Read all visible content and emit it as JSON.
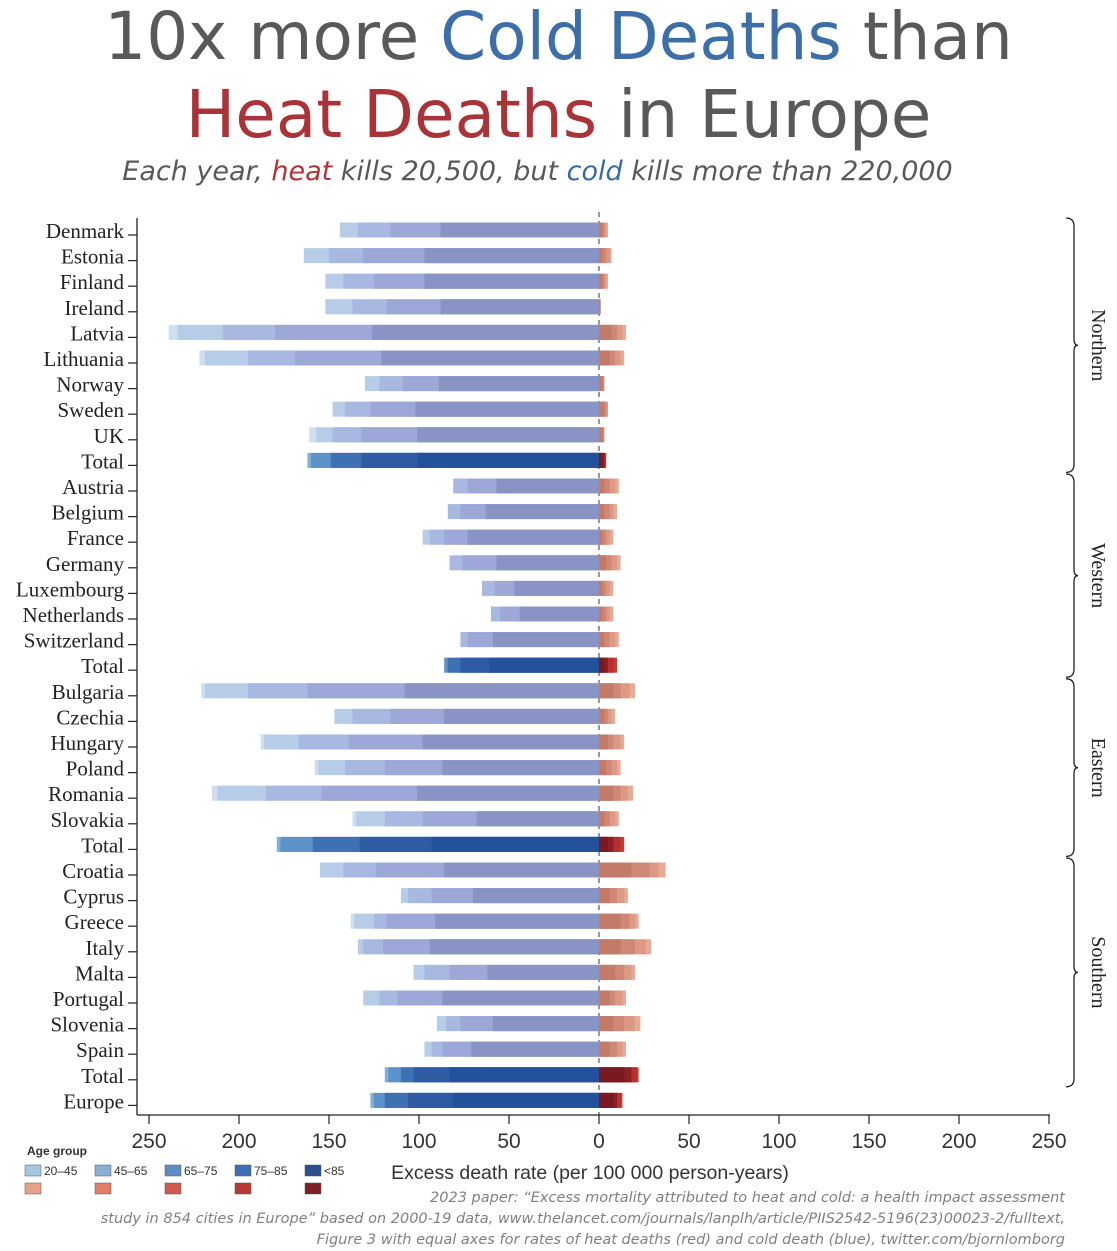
{
  "title": {
    "line1_pre": "10x more ",
    "line1_cold": "Cold Deaths",
    "line1_post": " than",
    "line2_heat": "Heat Deaths",
    "line2_post": " in Europe"
  },
  "subtitle": {
    "p1": "Each year, ",
    "heat": "heat",
    "p2": " kills 20,500, but ",
    "cold": "cold",
    "p3": " kills more than 220,000"
  },
  "source": {
    "line1": "2023 paper: “Excess mortality attributed to heat and cold: a health impact assessment",
    "line2": "study in 854 cities in Europe” based on 2000-19 data, www.thelancet.com/journals/lanplh/article/PIIS2542-5196(23)00023-2/fulltext,",
    "line3": "Figure 3 with equal axes for rates of heat deaths (red) and cold death (blue), twitter.com/bjornlomborg"
  },
  "chart_data": {
    "type": "bar",
    "orientation": "horizontal",
    "stacked": true,
    "xlabel": "Excess death rate (per 100 000 person-years)",
    "xlim": [
      -250,
      250
    ],
    "xticks": [
      -250,
      -200,
      -150,
      -100,
      -50,
      0,
      50,
      100,
      150,
      200,
      250
    ],
    "xtick_labels": [
      "250",
      "200",
      "150",
      "100",
      "50",
      "0",
      "50",
      "100",
      "150",
      "200",
      "250"
    ],
    "legend": {
      "title": "Age group",
      "position": "bottom-left",
      "labels": [
        "20–45",
        "45–65",
        "65–75",
        "75–85",
        "<85"
      ],
      "cold_colors": [
        "#a9c6e0",
        "#88afd4",
        "#5f8ec4",
        "#3f6fb0",
        "#2a4f8f"
      ],
      "heat_colors": [
        "#e8a088",
        "#e07e67",
        "#d25a4a",
        "#b83836",
        "#7c2024"
      ]
    },
    "colors": {
      "cold_country": [
        "#cfdff0",
        "#b7cde7",
        "#a8b8e0",
        "#9da8d8",
        "#8a94c4"
      ],
      "cold_total": [
        "#7fb0d8",
        "#5b92c7",
        "#3d71b4",
        "#2f5aa4",
        "#24519c"
      ],
      "heat_country": [
        "#f0c4b4",
        "#e8aa96",
        "#dc9a86",
        "#d08876",
        "#c47a68"
      ],
      "heat_total": [
        "#d64a40",
        "#c53c35",
        "#b5302e",
        "#8c1f24",
        "#7a1a20"
      ]
    },
    "regions": [
      {
        "name": "Northern",
        "rows": [
          0,
          9
        ]
      },
      {
        "name": "Western",
        "rows": [
          10,
          17
        ]
      },
      {
        "name": "Eastern",
        "rows": [
          18,
          24
        ]
      },
      {
        "name": "Southern",
        "rows": [
          25,
          33
        ]
      }
    ],
    "rows": [
      {
        "label": "Denmark",
        "cold": [
          144,
          134,
          116,
          88
        ],
        "heat": [
          5,
          4,
          3,
          2
        ]
      },
      {
        "label": "Estonia",
        "cold": [
          164,
          150,
          131,
          97
        ],
        "heat": [
          7,
          6,
          4,
          2
        ]
      },
      {
        "label": "Finland",
        "cold": [
          152,
          142,
          125,
          97
        ],
        "heat": [
          5,
          4,
          3,
          2
        ]
      },
      {
        "label": "Ireland",
        "cold": [
          152,
          137,
          118,
          88
        ],
        "heat": [
          1,
          0.5
        ]
      },
      {
        "label": "Latvia",
        "cold": [
          239,
          234,
          209,
          180,
          126
        ],
        "heat": [
          15,
          13,
          10,
          7
        ]
      },
      {
        "label": "Lithuania",
        "cold": [
          222,
          219,
          195,
          169,
          121
        ],
        "heat": [
          14,
          12,
          9,
          6
        ]
      },
      {
        "label": "Norway",
        "cold": [
          130,
          122,
          109,
          89
        ],
        "heat": [
          3,
          2
        ]
      },
      {
        "label": "Sweden",
        "cold": [
          148,
          141,
          127,
          102
        ],
        "heat": [
          5,
          4,
          3
        ]
      },
      {
        "label": "UK",
        "cold": [
          161,
          157,
          148,
          132,
          101
        ],
        "heat": [
          3,
          2
        ]
      },
      {
        "label": "Total",
        "total": true,
        "cold": [
          162,
          160,
          149,
          132,
          101
        ],
        "heat": [
          4,
          3,
          2
        ]
      },
      {
        "label": "Austria",
        "cold": [
          81,
          73,
          57
        ],
        "heat": [
          11,
          9,
          6,
          3
        ]
      },
      {
        "label": "Belgium",
        "cold": [
          84,
          77,
          63
        ],
        "heat": [
          10,
          8,
          6,
          3
        ]
      },
      {
        "label": "France",
        "cold": [
          98,
          94,
          86,
          73
        ],
        "heat": [
          8,
          6,
          4,
          2
        ]
      },
      {
        "label": "Germany",
        "cold": [
          83,
          76,
          57
        ],
        "heat": [
          12,
          10,
          7,
          4
        ]
      },
      {
        "label": "Luxembourg",
        "cold": [
          65,
          58,
          47
        ],
        "heat": [
          8,
          6,
          4,
          2
        ]
      },
      {
        "label": "Netherlands",
        "cold": [
          60,
          55,
          44
        ],
        "heat": [
          8,
          6,
          4,
          2
        ]
      },
      {
        "label": "Switzerland",
        "cold": [
          77,
          73,
          59
        ],
        "heat": [
          11,
          9,
          6,
          3
        ]
      },
      {
        "label": "Total",
        "total": true,
        "cold": [
          86,
          84,
          77,
          61
        ],
        "heat": [
          10,
          8,
          5,
          3
        ]
      },
      {
        "label": "Bulgaria",
        "cold": [
          221,
          219,
          195,
          162,
          108
        ],
        "heat": [
          20,
          17,
          12,
          8
        ]
      },
      {
        "label": "Czechia",
        "cold": [
          147,
          137,
          116,
          86
        ],
        "heat": [
          9,
          7,
          5,
          3
        ]
      },
      {
        "label": "Hungary",
        "cold": [
          188,
          186,
          167,
          139,
          98
        ],
        "heat": [
          14,
          12,
          8,
          5
        ]
      },
      {
        "label": "Poland",
        "cold": [
          158,
          156,
          141,
          119,
          87
        ],
        "heat": [
          12,
          10,
          7,
          4
        ]
      },
      {
        "label": "Romania",
        "cold": [
          215,
          212,
          185,
          154,
          101
        ],
        "heat": [
          19,
          16,
          12,
          8
        ]
      },
      {
        "label": "Slovakia",
        "cold": [
          137,
          135,
          119,
          98,
          68
        ],
        "heat": [
          11,
          9,
          6,
          3
        ]
      },
      {
        "label": "Total",
        "total": true,
        "cold": [
          179,
          177,
          159,
          133,
          93
        ],
        "heat": [
          14,
          12,
          8,
          5
        ]
      },
      {
        "label": "Croatia",
        "cold": [
          155,
          142,
          124,
          86
        ],
        "heat": [
          37,
          33,
          28,
          18
        ]
      },
      {
        "label": "Cyprus",
        "cold": [
          110,
          106,
          93,
          70
        ],
        "heat": [
          16,
          14,
          10,
          6
        ]
      },
      {
        "label": "Greece",
        "cold": [
          138,
          136,
          125,
          118,
          91
        ],
        "heat": [
          22,
          20,
          17,
          12
        ]
      },
      {
        "label": "Italy",
        "cold": [
          134,
          131,
          120,
          94
        ],
        "heat": [
          29,
          26,
          20,
          12
        ]
      },
      {
        "label": "Malta",
        "cold": [
          103,
          97,
          83,
          62
        ],
        "heat": [
          20,
          18,
          14,
          9
        ]
      },
      {
        "label": "Portugal",
        "cold": [
          131,
          122,
          112,
          87
        ],
        "heat": [
          15,
          13,
          9,
          6
        ]
      },
      {
        "label": "Slovenia",
        "cold": [
          90,
          85,
          77,
          59
        ],
        "heat": [
          23,
          20,
          14,
          8
        ]
      },
      {
        "label": "Spain",
        "cold": [
          97,
          93,
          87,
          71
        ],
        "heat": [
          15,
          13,
          10,
          6
        ]
      },
      {
        "label": "Total",
        "total": true,
        "cold": [
          119,
          117,
          110,
          103,
          83
        ],
        "heat": [
          22,
          21,
          18,
          14
        ]
      },
      {
        "label": "Europe",
        "total": true,
        "cold": [
          127,
          125,
          119,
          106,
          81
        ],
        "heat": [
          13,
          12,
          10,
          8
        ]
      }
    ]
  }
}
